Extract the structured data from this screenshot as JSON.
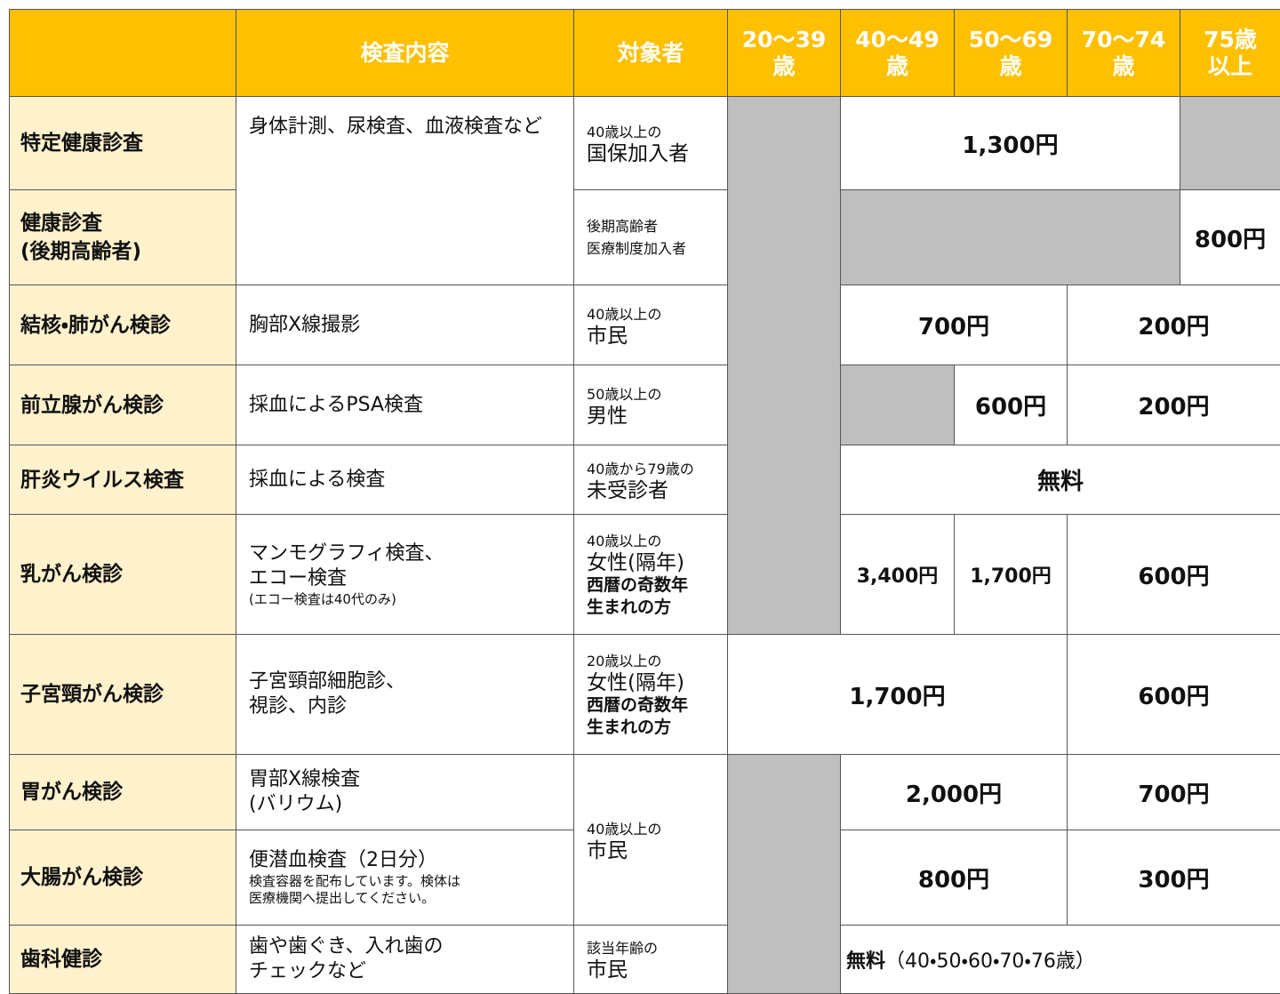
{
  "header": {
    "columns": [
      "検査内容",
      "対象者",
      [
        "20〜39",
        "歳"
      ],
      [
        "40〜49",
        "歳"
      ],
      [
        "50〜69",
        "歳"
      ],
      [
        "70〜74",
        "歳"
      ],
      [
        "75歳",
        "以上"
      ]
    ]
  },
  "rows": [
    {
      "name": [
        "特定健康診査"
      ],
      "content": [
        "身体計測、尿検査、血液検査など"
      ],
      "target": [
        "40歳以上の",
        "国保加入者"
      ],
      "prices": [
        "1,300円"
      ]
    },
    {
      "name": [
        "健康診査",
        "(後期高齢者)"
      ],
      "target": [
        "後期高齢者",
        "医療制度加入者"
      ],
      "prices": [
        "800円"
      ]
    },
    {
      "name": [
        "結核・肺がん検診"
      ],
      "content": [
        "胸部X線撮影"
      ],
      "target": [
        "40歳以上の",
        "市民"
      ],
      "prices": [
        "700円",
        "200円"
      ]
    },
    {
      "name": [
        "前立腺がん検診"
      ],
      "content": [
        "採血によるPSA検査"
      ],
      "target": [
        "50歳以上の",
        "男性"
      ],
      "prices": [
        "600円",
        "200円"
      ]
    },
    {
      "name": [
        "肝炎ウイルス検査"
      ],
      "content": [
        "採血による検査"
      ],
      "target": [
        "40歳から79歳の",
        "未受診者"
      ],
      "prices": [
        "無料"
      ]
    },
    {
      "name": [
        "乳がん検診"
      ],
      "content": [
        "マンモグラフィ検査、",
        "エコー検査",
        "(エコー検査は40代のみ)"
      ],
      "target": [
        "40歳以上の",
        "女性(隔年)",
        "西暦の奇数年",
        "生まれの方"
      ],
      "prices": [
        "3,400円",
        "1,700円",
        "600円"
      ]
    },
    {
      "name": [
        "子宮頸がん検診"
      ],
      "content": [
        "子宮頸部細胞診、",
        "視診、内診"
      ],
      "target": [
        "20歳以上の",
        "女性(隔年)",
        "西暦の奇数年",
        "生まれの方"
      ],
      "prices": [
        "1,700円",
        "600円"
      ]
    },
    {
      "name": [
        "胃がん検診"
      ],
      "content": [
        "胃部X線検査",
        "(バリウム)"
      ],
      "target": [
        "40歳以上の",
        "市民"
      ],
      "prices": [
        "2,000円",
        "700円"
      ]
    },
    {
      "name": [
        "大腸がん検診"
      ],
      "content": [
        "便潜血検査（2日分）",
        "検査容器を配布しています。検体は",
        "医療機関へ提出してください。"
      ],
      "prices": [
        "800円",
        "300円"
      ]
    },
    {
      "name": [
        "歯科健診"
      ],
      "content": [
        "歯や歯ぐき、入れ歯の",
        "チェックなど"
      ],
      "target": [
        "該当年齢の",
        "市民"
      ],
      "prices": [
        "無料",
        "（40・50・60・70・76歳）"
      ]
    }
  ]
}
